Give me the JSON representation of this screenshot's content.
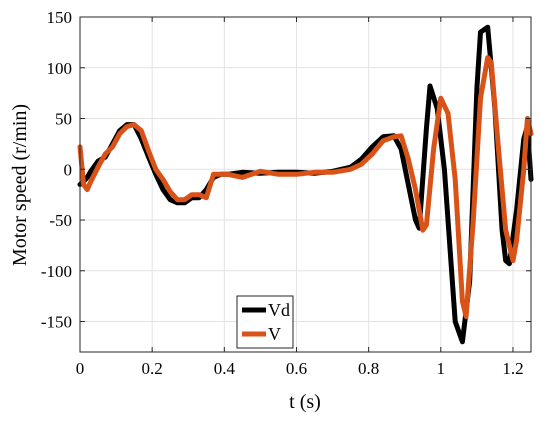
{
  "chart_data": {
    "type": "line",
    "xlabel": "t (s)",
    "ylabel": "Motor speed (r/min)",
    "xlim": [
      0,
      1.25
    ],
    "ylim": [
      -180,
      150
    ],
    "xticks": [
      0,
      0.2,
      0.4,
      0.6,
      0.8,
      1,
      1.2
    ],
    "xtick_labels": [
      "0",
      "0.2",
      "0.4",
      "0.6",
      "0.8",
      "1",
      "1.2"
    ],
    "yticks": [
      150,
      100,
      50,
      0,
      -50,
      -100,
      -150
    ],
    "ytick_labels": [
      "150",
      "100",
      "50",
      "0",
      "-50",
      "-100",
      "-150"
    ],
    "grid": true,
    "legend": {
      "placement": "bottom-left"
    },
    "series": [
      {
        "name": "Vd",
        "color": "#000000",
        "x": [
          0.0,
          0.01,
          0.02,
          0.03,
          0.05,
          0.07,
          0.09,
          0.11,
          0.13,
          0.15,
          0.17,
          0.19,
          0.21,
          0.23,
          0.25,
          0.27,
          0.29,
          0.31,
          0.33,
          0.35,
          0.37,
          0.39,
          0.41,
          0.45,
          0.5,
          0.55,
          0.6,
          0.65,
          0.7,
          0.75,
          0.78,
          0.81,
          0.84,
          0.87,
          0.89,
          0.91,
          0.93,
          0.94,
          0.96,
          0.97,
          0.99,
          1.01,
          1.03,
          1.04,
          1.06,
          1.08,
          1.1,
          1.11,
          1.13,
          1.15,
          1.17,
          1.18,
          1.19,
          1.21,
          1.23,
          1.24,
          1.25
        ],
        "y": [
          -15,
          -12,
          -8,
          -2,
          8,
          12,
          25,
          38,
          44,
          44,
          30,
          12,
          -5,
          -20,
          -30,
          -33,
          -33,
          -28,
          -28,
          -20,
          -8,
          -5,
          -5,
          -3,
          -4,
          -3,
          -3,
          -4,
          -2,
          2,
          10,
          22,
          32,
          33,
          20,
          -15,
          -50,
          -58,
          40,
          82,
          60,
          0,
          -100,
          -150,
          -170,
          -110,
          80,
          135,
          140,
          60,
          -60,
          -90,
          -93,
          -40,
          30,
          42,
          -10
        ]
      },
      {
        "name": "V",
        "color": "#d95319",
        "x": [
          0.0,
          0.01,
          0.02,
          0.03,
          0.05,
          0.07,
          0.09,
          0.11,
          0.13,
          0.15,
          0.17,
          0.19,
          0.21,
          0.23,
          0.25,
          0.27,
          0.29,
          0.31,
          0.33,
          0.35,
          0.37,
          0.39,
          0.41,
          0.45,
          0.5,
          0.55,
          0.6,
          0.65,
          0.7,
          0.75,
          0.78,
          0.81,
          0.84,
          0.87,
          0.89,
          0.91,
          0.93,
          0.95,
          0.96,
          0.98,
          1.0,
          1.02,
          1.04,
          1.06,
          1.07,
          1.09,
          1.11,
          1.13,
          1.14,
          1.16,
          1.18,
          1.2,
          1.21,
          1.23,
          1.24,
          1.25
        ],
        "y": [
          22,
          -15,
          -20,
          -12,
          2,
          15,
          22,
          35,
          42,
          44,
          38,
          18,
          0,
          -10,
          -22,
          -30,
          -30,
          -25,
          -25,
          -28,
          -5,
          -5,
          -5,
          -8,
          -2,
          -5,
          -5,
          -3,
          -3,
          0,
          5,
          15,
          28,
          32,
          33,
          10,
          -20,
          -60,
          -55,
          20,
          70,
          55,
          -10,
          -130,
          -145,
          -50,
          70,
          110,
          105,
          20,
          -60,
          -90,
          -70,
          0,
          50,
          35
        ]
      }
    ]
  }
}
